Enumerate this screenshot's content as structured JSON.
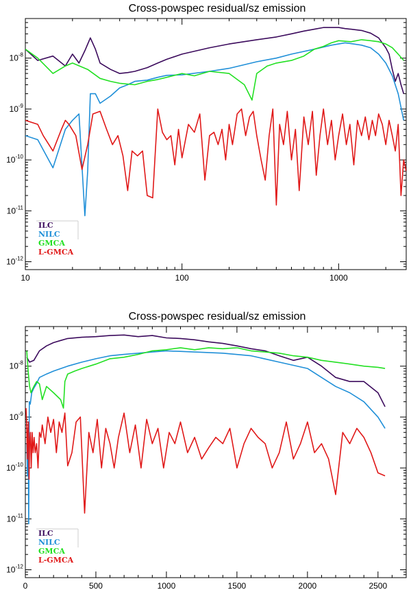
{
  "chart_data": [
    {
      "type": "line",
      "title": "Cross-powspec residual/sz emission",
      "xscale": "log",
      "yscale": "log",
      "xlim": [
        10,
        2700
      ],
      "ylim": [
        7e-13,
        6e-08
      ],
      "xticks": [
        {
          "value": 10,
          "label": "10"
        },
        {
          "value": 100,
          "label": "100"
        },
        {
          "value": 1000,
          "label": "1000"
        }
      ],
      "yticks": [
        {
          "value": 1e-08,
          "base": "10",
          "exp": "-8"
        },
        {
          "value": 1e-09,
          "base": "10",
          "exp": "-9"
        },
        {
          "value": 1e-10,
          "base": "10",
          "exp": "-10"
        },
        {
          "value": 1e-11,
          "base": "10",
          "exp": "-11"
        },
        {
          "value": 1e-12,
          "base": "10",
          "exp": "-12"
        }
      ],
      "legend": "bottom-left",
      "series": [
        {
          "name": "ILC",
          "color": "#3b0a5c",
          "x": [
            10,
            12,
            15,
            18,
            20,
            22,
            24,
            26,
            28,
            30,
            35,
            40,
            45,
            50,
            60,
            70,
            80,
            100,
            150,
            200,
            300,
            400,
            500,
            600,
            700,
            800,
            900,
            1000,
            1100,
            1200,
            1400,
            1600,
            1800,
            2000,
            2100,
            2200,
            2300,
            2400,
            2500,
            2600
          ],
          "y": [
            1.5e-08,
            9e-09,
            1.1e-08,
            7e-09,
            1.2e-08,
            8e-09,
            1.4e-08,
            2.5e-08,
            1.5e-08,
            8e-09,
            6e-09,
            5e-09,
            5.2e-09,
            5.5e-09,
            6.5e-09,
            8e-09,
            9.5e-09,
            1.2e-08,
            1.6e-08,
            1.9e-08,
            2.3e-08,
            2.6e-08,
            3e-08,
            3.4e-08,
            3.7e-08,
            4e-08,
            4e-08,
            4e-08,
            3.8e-08,
            3.7e-08,
            3.5e-08,
            3.1e-08,
            2.5e-08,
            1.6e-08,
            1.2e-08,
            6e-09,
            3.5e-09,
            5e-09,
            3e-09,
            2e-09
          ]
        },
        {
          "name": "NILC",
          "color": "#1f8fd8",
          "x": [
            10,
            12,
            15,
            18,
            20,
            22,
            24,
            25,
            26,
            28,
            30,
            35,
            40,
            45,
            50,
            60,
            70,
            80,
            100,
            150,
            200,
            300,
            400,
            500,
            700,
            900,
            1100,
            1400,
            1600,
            1800,
            2000,
            2200,
            2400,
            2600
          ],
          "y": [
            3e-10,
            2.5e-10,
            7e-11,
            4e-10,
            6e-10,
            8e-10,
            8e-12,
            6e-11,
            2e-09,
            2e-09,
            1.3e-09,
            1.8e-09,
            2.6e-09,
            3e-09,
            3.5e-09,
            3.7e-09,
            4.2e-09,
            4.6e-09,
            4.7e-09,
            5.5e-09,
            6.3e-09,
            8.5e-09,
            1e-08,
            1.2e-08,
            1.5e-08,
            1.8e-08,
            2e-08,
            1.8e-08,
            1.6e-08,
            1.2e-08,
            8e-09,
            4.5e-09,
            2e-09,
            6e-10
          ]
        },
        {
          "name": "GMCA",
          "color": "#22e022",
          "x": [
            10,
            12,
            15,
            18,
            20,
            25,
            30,
            35,
            40,
            50,
            60,
            70,
            80,
            100,
            120,
            150,
            200,
            250,
            280,
            300,
            350,
            400,
            500,
            600,
            700,
            800,
            900,
            1000,
            1200,
            1400,
            1600,
            1800,
            2000,
            2200,
            2400,
            2600
          ],
          "y": [
            1.5e-08,
            1e-08,
            5e-09,
            7e-09,
            8e-09,
            6e-09,
            4e-09,
            3.5e-09,
            3.2e-09,
            3e-09,
            3.5e-09,
            3.8e-09,
            4.2e-09,
            5e-09,
            4.5e-09,
            5.5e-09,
            5e-09,
            3e-09,
            1.5e-09,
            5e-09,
            7e-09,
            8e-09,
            9e-09,
            1.1e-08,
            1.5e-08,
            1.7e-08,
            2e-08,
            2.2e-08,
            2.1e-08,
            2.3e-08,
            2.2e-08,
            2.1e-08,
            1.9e-08,
            1.6e-08,
            1.2e-08,
            9e-09
          ]
        },
        {
          "name": "L-GMCA",
          "color": "#e01818",
          "x": [
            10,
            12,
            13,
            15,
            17,
            18,
            19,
            21,
            23,
            25,
            27,
            30,
            33,
            36,
            39,
            42,
            45,
            48,
            52,
            56,
            60,
            65,
            70,
            75,
            80,
            85,
            90,
            95,
            100,
            110,
            120,
            130,
            140,
            150,
            160,
            170,
            180,
            190,
            200,
            210,
            225,
            240,
            255,
            270,
            285,
            300,
            320,
            340,
            360,
            380,
            400,
            420,
            445,
            470,
            500,
            530,
            560,
            600,
            640,
            680,
            720,
            760,
            800,
            850,
            900,
            950,
            1000,
            1060,
            1120,
            1180,
            1250,
            1320,
            1400,
            1480,
            1560,
            1640,
            1720,
            1800,
            1900,
            2000,
            2100,
            2200,
            2300,
            2400,
            2500,
            2600,
            2700
          ],
          "y": [
            6e-10,
            5e-10,
            3e-10,
            1.5e-10,
            4e-10,
            6e-10,
            5e-10,
            3e-10,
            6.5e-11,
            2e-10,
            8e-10,
            9e-10,
            4e-10,
            2e-10,
            3e-10,
            1.2e-10,
            2.5e-11,
            1.5e-10,
            1.2e-10,
            1.5e-10,
            2e-11,
            1.8e-11,
            1e-09,
            3.5e-10,
            2.5e-10,
            3e-10,
            8e-11,
            4e-10,
            1.1e-10,
            5e-10,
            3.5e-10,
            8e-10,
            4e-11,
            3e-10,
            3.5e-10,
            2e-10,
            4e-10,
            1e-10,
            5e-10,
            2e-10,
            8e-10,
            1e-09,
            3e-10,
            7e-10,
            9e-10,
            3e-10,
            1e-10,
            4e-11,
            3e-10,
            1e-09,
            1.3e-11,
            5e-10,
            2e-10,
            9e-10,
            1e-10,
            4e-10,
            2.5e-11,
            7e-10,
            2e-10,
            9e-10,
            5e-11,
            3e-10,
            1e-09,
            2e-10,
            6e-10,
            1e-10,
            3e-10,
            8e-10,
            2e-10,
            5e-10,
            8e-11,
            6e-10,
            3e-10,
            7e-10,
            2.5e-10,
            6e-10,
            3e-10,
            8e-10,
            5e-10,
            2e-10,
            6e-10,
            3e-10,
            1.5e-10,
            5e-10,
            2e-11,
            1e-10,
            6e-11
          ]
        }
      ]
    },
    {
      "type": "line",
      "title": "Cross-powspec residual/sz emission",
      "xscale": "linear",
      "yscale": "log",
      "xlim": [
        0,
        2700
      ],
      "ylim": [
        7e-13,
        6e-08
      ],
      "xticks": [
        {
          "value": 0,
          "label": "0"
        },
        {
          "value": 500,
          "label": "500"
        },
        {
          "value": 1000,
          "label": "1000"
        },
        {
          "value": 1500,
          "label": "1500"
        },
        {
          "value": 2000,
          "label": "2000"
        },
        {
          "value": 2500,
          "label": "2500"
        }
      ],
      "yticks": [
        {
          "value": 1e-08,
          "base": "10",
          "exp": "-8"
        },
        {
          "value": 1e-09,
          "base": "10",
          "exp": "-9"
        },
        {
          "value": 1e-10,
          "base": "10",
          "exp": "-10"
        },
        {
          "value": 1e-11,
          "base": "10",
          "exp": "-11"
        },
        {
          "value": 1e-12,
          "base": "10",
          "exp": "-12"
        }
      ],
      "legend": "bottom-left",
      "series": [
        {
          "name": "ILC",
          "color": "#3b0a5c",
          "x": [
            10,
            30,
            60,
            100,
            150,
            200,
            250,
            300,
            400,
            500,
            600,
            700,
            800,
            900,
            1000,
            1100,
            1200,
            1300,
            1400,
            1500,
            1600,
            1700,
            1800,
            1900,
            2000,
            2100,
            2200,
            2300,
            2400,
            2500,
            2550
          ],
          "y": [
            1.5e-08,
            1.2e-08,
            1.3e-08,
            2e-08,
            2.5e-08,
            2.9e-08,
            3.2e-08,
            3.5e-08,
            3.7e-08,
            3.8e-08,
            4e-08,
            4.1e-08,
            3.8e-08,
            4e-08,
            3.6e-08,
            3.5e-08,
            3.3e-08,
            3e-08,
            2.8e-08,
            2.5e-08,
            2.2e-08,
            2e-08,
            1.6e-08,
            1.3e-08,
            1.5e-08,
            1e-08,
            6e-09,
            5e-09,
            5e-09,
            3e-09,
            1.6e-09
          ]
        },
        {
          "name": "NILC",
          "color": "#1f8fd8",
          "x": [
            10,
            15,
            20,
            24,
            28,
            35,
            45,
            60,
            80,
            100,
            150,
            200,
            300,
            400,
            500,
            600,
            700,
            800,
            900,
            1000,
            1200,
            1400,
            1600,
            1800,
            2000,
            2100,
            2200,
            2300,
            2400,
            2500,
            2550
          ],
          "y": [
            3e-10,
            7e-11,
            6e-10,
            8e-12,
            2e-09,
            1.8e-09,
            3e-09,
            3.7e-09,
            4.6e-09,
            6e-09,
            7e-09,
            8e-09,
            1e-08,
            1.2e-08,
            1.4e-08,
            1.6e-08,
            1.7e-08,
            1.8e-08,
            1.9e-08,
            2e-08,
            1.9e-08,
            1.8e-08,
            1.6e-08,
            1.2e-08,
            9e-09,
            6e-09,
            4e-09,
            3e-09,
            2e-09,
            1e-09,
            6e-10
          ]
        },
        {
          "name": "GMCA",
          "color": "#22e022",
          "x": [
            10,
            20,
            30,
            40,
            50,
            60,
            80,
            100,
            120,
            150,
            200,
            250,
            270,
            280,
            300,
            350,
            400,
            500,
            600,
            700,
            800,
            900,
            1000,
            1100,
            1200,
            1300,
            1400,
            1500,
            1600,
            1700,
            1800,
            1900,
            2000,
            2100,
            2200,
            2300,
            2400,
            2500,
            2550
          ],
          "y": [
            2e-08,
            8e-09,
            4e-09,
            3e-09,
            3.5e-09,
            4e-09,
            5e-09,
            4.5e-09,
            2.2e-09,
            4e-09,
            3e-09,
            2.2e-09,
            1.5e-09,
            5e-09,
            7e-09,
            8e-09,
            9e-09,
            1.1e-08,
            1.4e-08,
            1.5e-08,
            1.7e-08,
            2e-08,
            2.1e-08,
            2.3e-08,
            2.1e-08,
            2.3e-08,
            2.2e-08,
            2.3e-08,
            2e-08,
            1.9e-08,
            1.8e-08,
            1.6e-08,
            1.5e-08,
            1.3e-08,
            1.2e-08,
            1.1e-08,
            1e-08,
            9.5e-09,
            9e-09
          ]
        },
        {
          "name": "L-GMCA",
          "color": "#e01818",
          "x": [
            5,
            10,
            14,
            18,
            22,
            26,
            30,
            36,
            42,
            48,
            55,
            62,
            70,
            80,
            90,
            100,
            110,
            120,
            140,
            160,
            180,
            200,
            220,
            240,
            260,
            280,
            300,
            330,
            360,
            390,
            420,
            450,
            480,
            510,
            540,
            570,
            600,
            630,
            660,
            700,
            740,
            780,
            820,
            860,
            900,
            940,
            980,
            1020,
            1060,
            1100,
            1150,
            1200,
            1250,
            1300,
            1350,
            1400,
            1450,
            1500,
            1550,
            1600,
            1650,
            1700,
            1750,
            1800,
            1850,
            1900,
            1950,
            2000,
            2050,
            2100,
            2150,
            2200,
            2250,
            2300,
            2350,
            2400,
            2450,
            2500,
            2550
          ],
          "y": [
            1.5e-09,
            6e-10,
            1.5e-10,
            5e-10,
            8e-10,
            6e-11,
            3e-10,
            5e-10,
            1e-10,
            5e-10,
            2e-10,
            4e-10,
            2e-10,
            3e-10,
            1e-10,
            5e-10,
            4e-10,
            7e-10,
            3e-10,
            1e-09,
            5e-10,
            9e-10,
            2e-10,
            8e-10,
            5e-10,
            1.2e-09,
            1.1e-10,
            2e-10,
            8e-10,
            1e-09,
            1.3e-11,
            5e-10,
            2e-10,
            9e-10,
            1e-10,
            6e-10,
            3e-10,
            1e-10,
            4e-10,
            1.2e-09,
            2e-10,
            7e-10,
            1e-10,
            9e-10,
            3e-10,
            6e-10,
            1e-10,
            5e-10,
            3e-10,
            8e-10,
            2e-10,
            4e-10,
            1.5e-10,
            2.5e-10,
            4e-10,
            3e-10,
            6e-10,
            1e-10,
            3e-10,
            6e-10,
            4e-10,
            3e-10,
            1e-10,
            2e-10,
            8e-10,
            1.5e-10,
            3e-10,
            8e-10,
            2e-10,
            3e-10,
            1.5e-10,
            3e-11,
            5e-10,
            3e-10,
            6e-10,
            4e-10,
            2e-10,
            8e-11,
            7e-11
          ]
        }
      ]
    }
  ]
}
